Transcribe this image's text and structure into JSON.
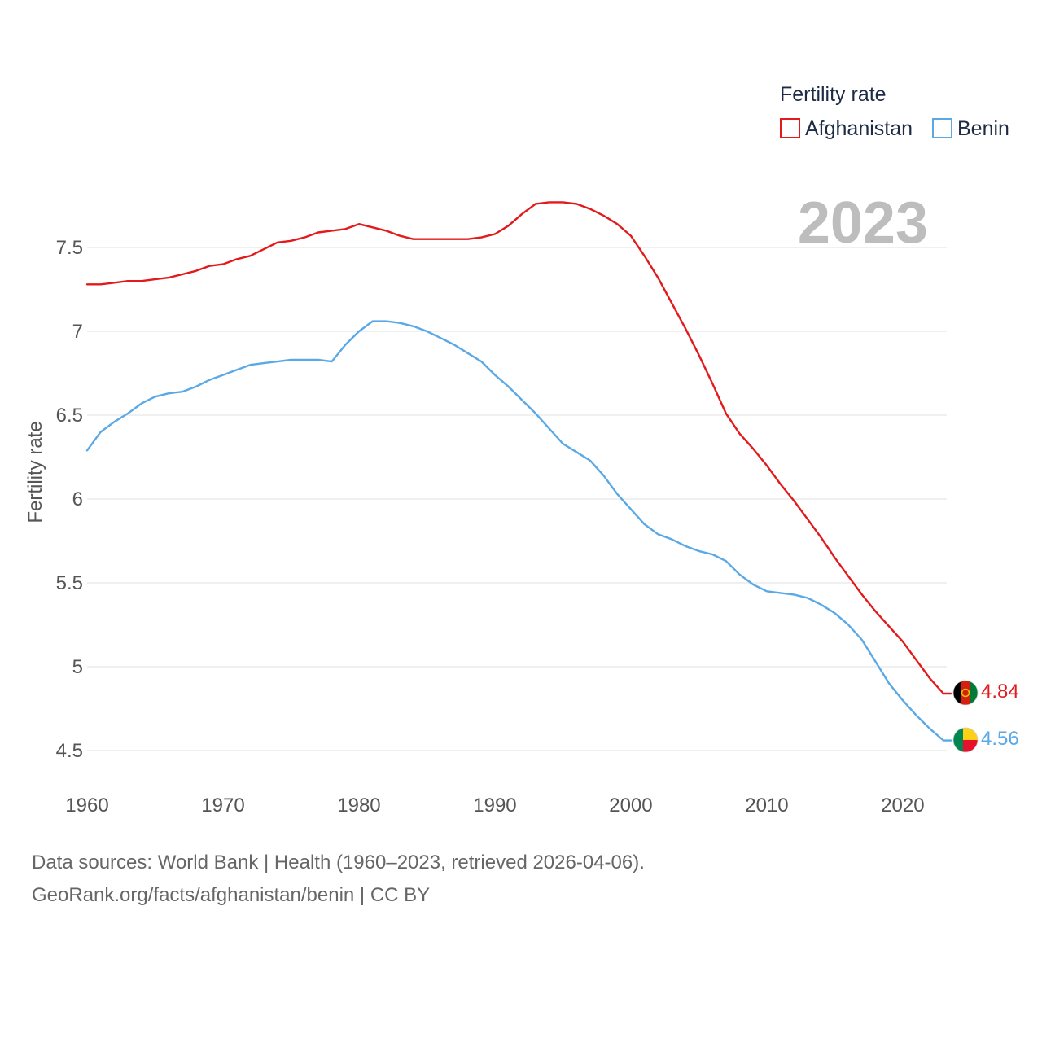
{
  "legend": {
    "title": "Fertility rate"
  },
  "year_label": "2023",
  "source": {
    "line1": "Data sources: World Bank | Health (1960–2023, retrieved 2026-04-06).",
    "line2": "GeoRank.org/facts/afghanistan/benin | CC BY"
  },
  "chart_data": {
    "type": "line",
    "title": "",
    "xlabel": "",
    "ylabel": "Fertility rate",
    "xlim": [
      1960,
      2023
    ],
    "ylim": [
      4.5,
      7.8
    ],
    "x_ticks": [
      1960,
      1970,
      1980,
      1990,
      2000,
      2010,
      2020
    ],
    "y_ticks": [
      {
        "value": 4.5,
        "label": "4.5"
      },
      {
        "value": 5,
        "label": "5"
      },
      {
        "value": 5.5,
        "label": "5.5"
      },
      {
        "value": 6,
        "label": "6"
      },
      {
        "value": 6.5,
        "label": "6.5"
      },
      {
        "value": 7,
        "label": "7"
      },
      {
        "value": 7.5,
        "label": "7.5"
      }
    ],
    "x": [
      1960,
      1961,
      1962,
      1963,
      1964,
      1965,
      1966,
      1967,
      1968,
      1969,
      1970,
      1971,
      1972,
      1973,
      1974,
      1975,
      1976,
      1977,
      1978,
      1979,
      1980,
      1981,
      1982,
      1983,
      1984,
      1985,
      1986,
      1987,
      1988,
      1989,
      1990,
      1991,
      1992,
      1993,
      1994,
      1995,
      1996,
      1997,
      1998,
      1999,
      2000,
      2001,
      2002,
      2003,
      2004,
      2005,
      2006,
      2007,
      2008,
      2009,
      2010,
      2011,
      2012,
      2013,
      2014,
      2015,
      2016,
      2017,
      2018,
      2019,
      2020,
      2021,
      2022,
      2023
    ],
    "series": [
      {
        "name": "Afghanistan",
        "color": "#e31a1c",
        "end_label": "4.84",
        "values": [
          7.28,
          7.28,
          7.29,
          7.3,
          7.3,
          7.31,
          7.32,
          7.34,
          7.36,
          7.39,
          7.4,
          7.43,
          7.45,
          7.49,
          7.53,
          7.54,
          7.56,
          7.59,
          7.6,
          7.61,
          7.64,
          7.62,
          7.6,
          7.57,
          7.55,
          7.55,
          7.55,
          7.55,
          7.55,
          7.56,
          7.58,
          7.63,
          7.7,
          7.76,
          7.77,
          7.77,
          7.76,
          7.73,
          7.69,
          7.64,
          7.57,
          7.45,
          7.32,
          7.17,
          7.02,
          6.86,
          6.69,
          6.51,
          6.39,
          6.3,
          6.2,
          6.09,
          5.99,
          5.88,
          5.77,
          5.65,
          5.54,
          5.43,
          5.33,
          5.24,
          5.15,
          5.04,
          4.93,
          4.84
        ]
      },
      {
        "name": "Benin",
        "color": "#5aa9e6",
        "end_label": "4.56",
        "values": [
          6.29,
          6.4,
          6.46,
          6.51,
          6.57,
          6.61,
          6.63,
          6.64,
          6.67,
          6.71,
          6.74,
          6.77,
          6.8,
          6.81,
          6.82,
          6.83,
          6.83,
          6.83,
          6.82,
          6.92,
          7.0,
          7.06,
          7.06,
          7.05,
          7.03,
          7.0,
          6.96,
          6.92,
          6.87,
          6.82,
          6.74,
          6.67,
          6.59,
          6.51,
          6.42,
          6.33,
          6.28,
          6.23,
          6.14,
          6.03,
          5.94,
          5.85,
          5.79,
          5.76,
          5.72,
          5.69,
          5.67,
          5.63,
          5.55,
          5.49,
          5.45,
          5.44,
          5.43,
          5.41,
          5.37,
          5.32,
          5.25,
          5.16,
          5.03,
          4.9,
          4.8,
          4.71,
          4.63,
          4.56
        ]
      }
    ]
  },
  "colors": {
    "grid": "#e6e6e6",
    "legend_title": "#1d2b45",
    "year_label": "#bdbdbd",
    "afghanistan_flag": [
      "#000000",
      "#d32011",
      "#007a36"
    ],
    "benin_flag": [
      "#008751",
      "#fcd116",
      "#e8112d"
    ]
  }
}
